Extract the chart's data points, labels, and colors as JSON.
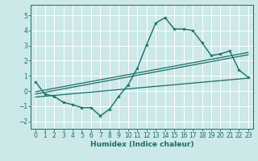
{
  "xlabel": "Humidex (Indice chaleur)",
  "bg_color": "#cce8e8",
  "grid_color": "#b0d0d0",
  "line_color": "#1a6e6a",
  "xlim": [
    -0.5,
    23.5
  ],
  "ylim": [
    -2.5,
    5.7
  ],
  "xticks": [
    0,
    1,
    2,
    3,
    4,
    5,
    6,
    7,
    8,
    9,
    10,
    11,
    12,
    13,
    14,
    15,
    16,
    17,
    18,
    19,
    20,
    21,
    22,
    23
  ],
  "yticks": [
    -2,
    -1,
    0,
    1,
    2,
    3,
    4,
    5
  ],
  "main_x": [
    0,
    1,
    2,
    3,
    4,
    5,
    6,
    7,
    8,
    9,
    10,
    11,
    12,
    13,
    14,
    15,
    16,
    17,
    18,
    19,
    20,
    21,
    22,
    23
  ],
  "main_y": [
    0.6,
    -0.2,
    -0.35,
    -0.75,
    -0.9,
    -1.1,
    -1.1,
    -1.65,
    -1.2,
    -0.35,
    0.4,
    1.5,
    3.05,
    4.5,
    4.85,
    4.1,
    4.1,
    4.0,
    3.2,
    2.35,
    2.45,
    2.65,
    1.4,
    0.9
  ],
  "line1_x": [
    0,
    23
  ],
  "line1_y": [
    -0.2,
    2.4
  ],
  "line2_x": [
    0,
    23
  ],
  "line2_y": [
    -0.4,
    0.85
  ],
  "line3_x": [
    0,
    23
  ],
  "line3_y": [
    -0.05,
    2.55
  ]
}
